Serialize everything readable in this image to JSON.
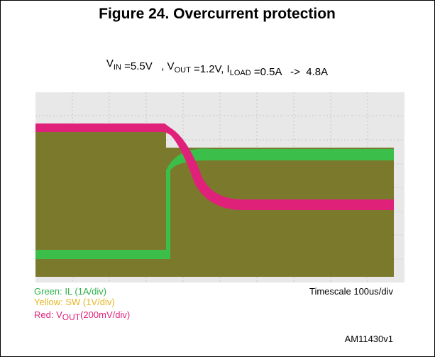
{
  "figure": {
    "title": "Figure 24. Overcurrent protection",
    "conditions": [
      {
        "text": "V",
        "sub": "IN"
      },
      {
        "text": " =5.5V   , V",
        "sub": "OUT"
      },
      {
        "text": " =1.2V, I",
        "sub": "LOAD"
      },
      {
        "text": " =0.5A   ->  4.8A",
        "sub": null
      }
    ],
    "legend": {
      "green": "Green: IL (1A/div)",
      "yellow": "Yellow: SW (1V/div)",
      "red": {
        "prefix": "Red: V",
        "sub": "OUT",
        "suffix": "(200mV/div)"
      }
    },
    "timescale": "Timescale 100us/div",
    "id": "AM11430v1"
  }
}
